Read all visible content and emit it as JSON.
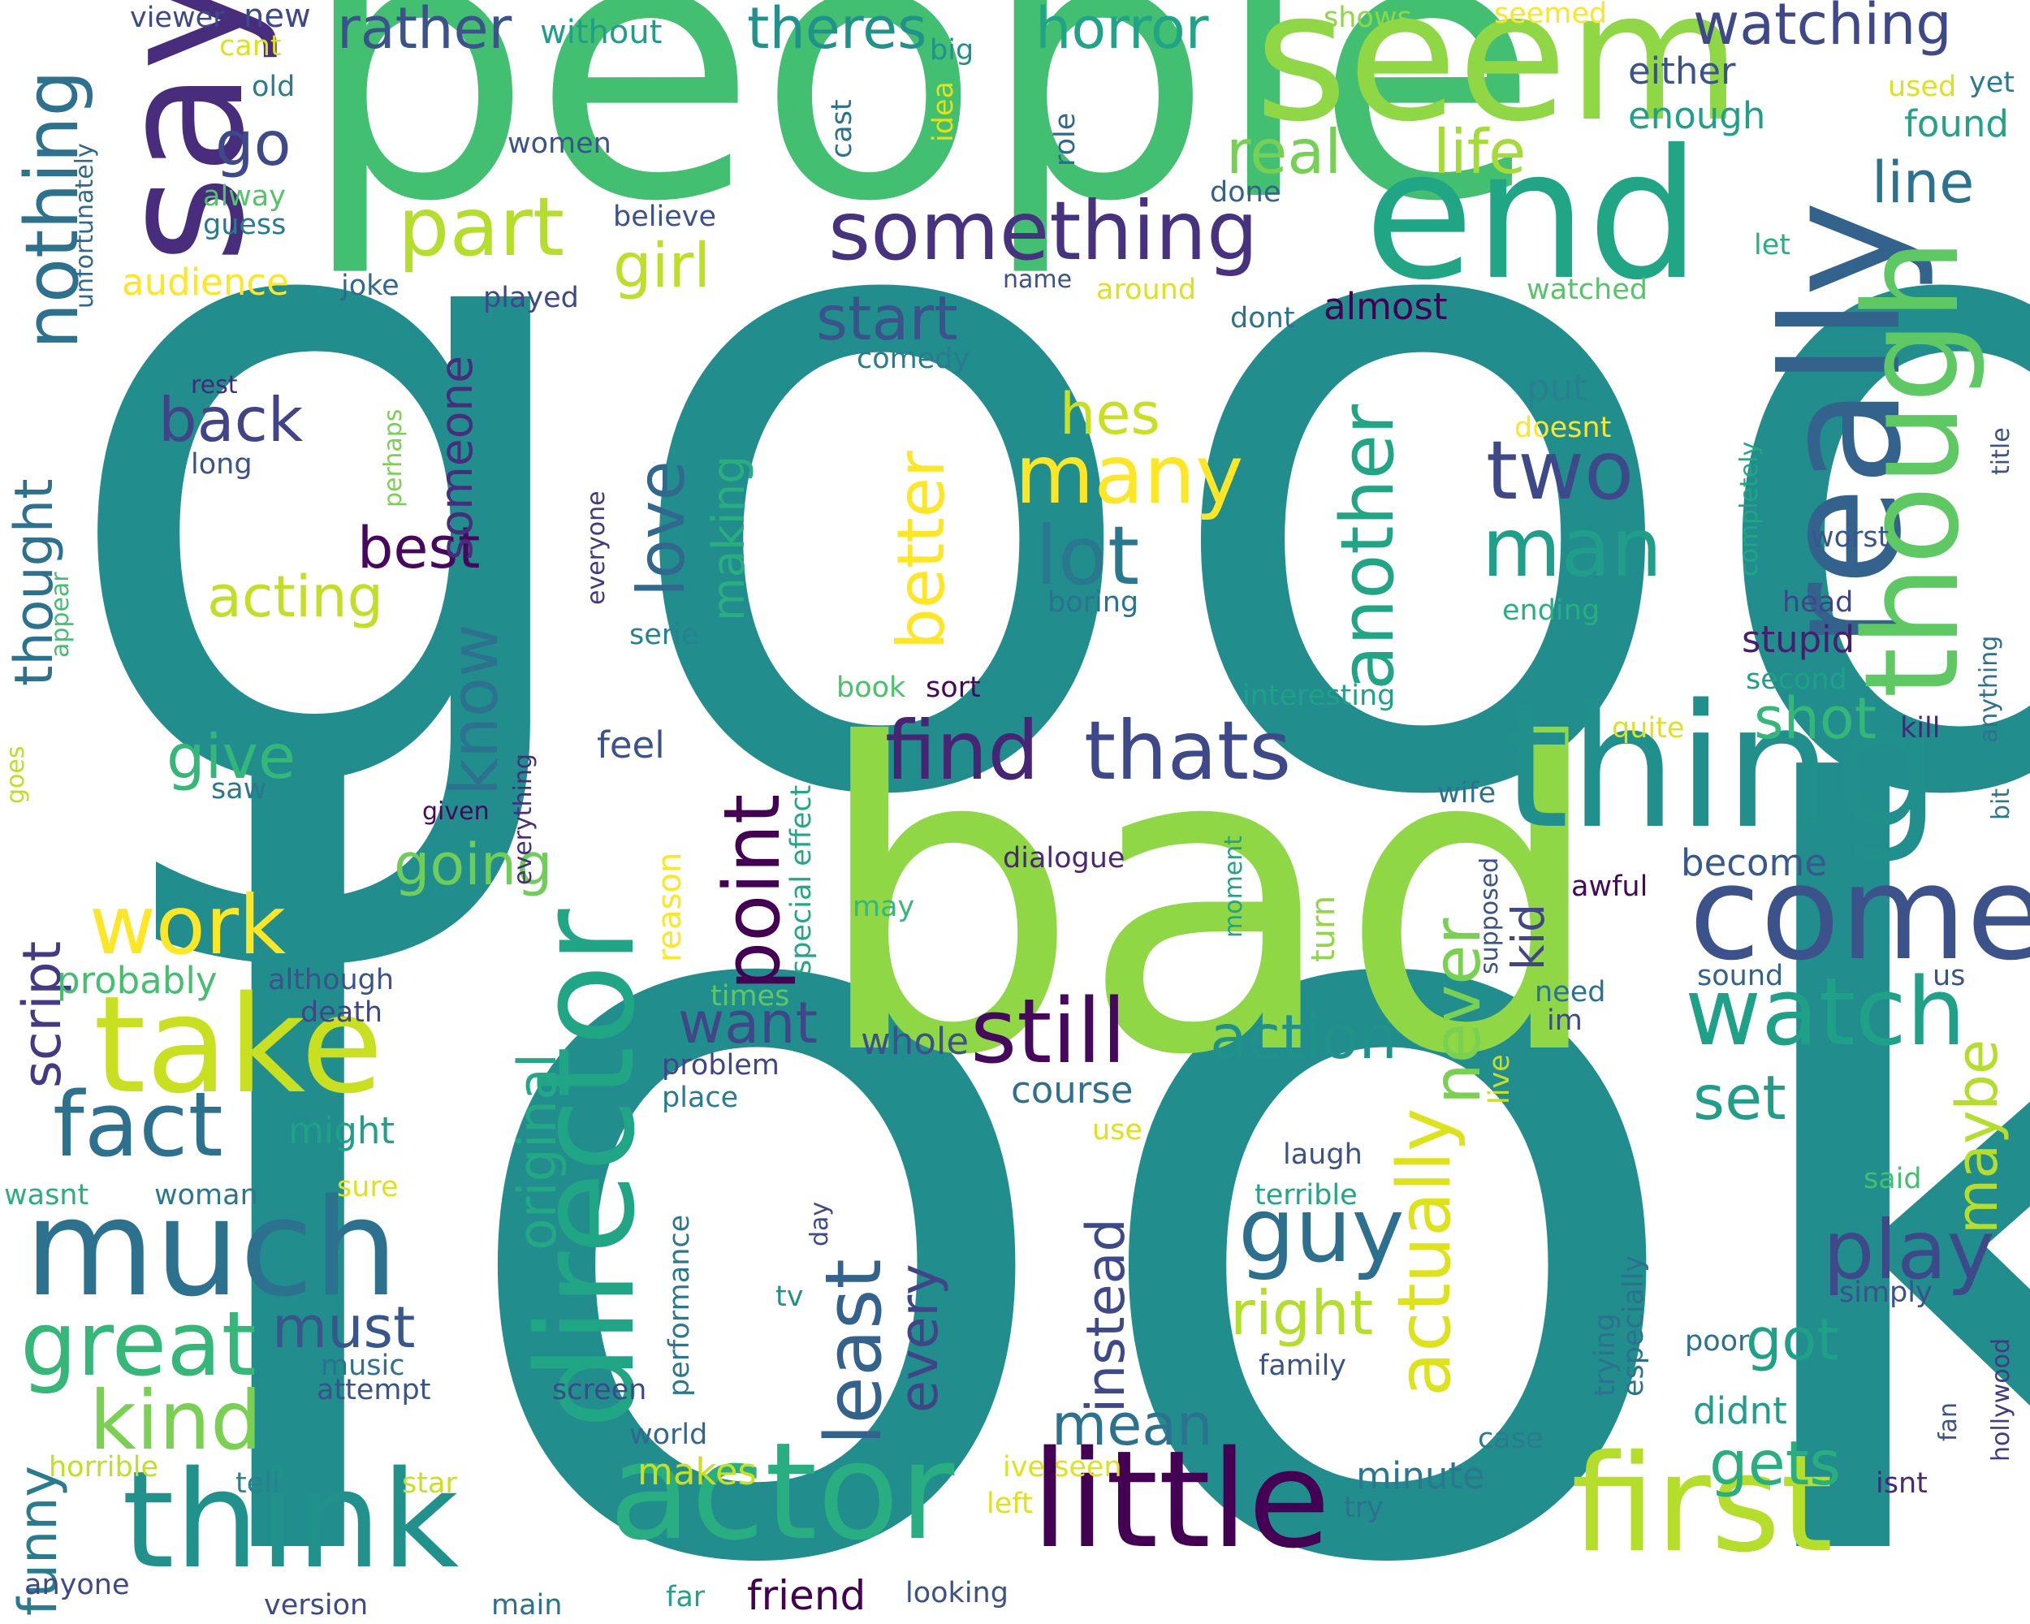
{
  "words": [
    {
      "text": "good",
      "color": "#218d8c"
    },
    {
      "text": "look",
      "color": "#218d8c"
    },
    {
      "text": "people",
      "color": "#43bf71"
    },
    {
      "text": "bad",
      "color": "#8fd744"
    },
    {
      "text": "seem",
      "color": "#8fd744"
    },
    {
      "text": "end",
      "color": "#21a685"
    },
    {
      "text": "say",
      "color": "#472d7b"
    },
    {
      "text": "really",
      "color": "#33638d"
    },
    {
      "text": "thing",
      "color": "#21908d"
    },
    {
      "text": "though",
      "color": "#5ec962"
    },
    {
      "text": "come",
      "color": "#3b528b"
    },
    {
      "text": "director",
      "color": "#21a685"
    },
    {
      "text": "take",
      "color": "#c8e020"
    },
    {
      "text": "much",
      "color": "#2c728e"
    },
    {
      "text": "think",
      "color": "#21918c"
    },
    {
      "text": "actor",
      "color": "#28ae80"
    },
    {
      "text": "little",
      "color": "#440154"
    },
    {
      "text": "first",
      "color": "#b5de2b"
    },
    {
      "text": "something",
      "color": "#46327e"
    },
    {
      "text": "part",
      "color": "#b5de2b"
    },
    {
      "text": "nothing",
      "color": "#2c728e"
    },
    {
      "text": "horror",
      "color": "#20a386"
    },
    {
      "text": "watching",
      "color": "#3e4989"
    },
    {
      "text": "rather",
      "color": "#3b528b"
    },
    {
      "text": "theres",
      "color": "#21918c"
    },
    {
      "text": "real",
      "color": "#75d054"
    },
    {
      "text": "life",
      "color": "#a5db36"
    },
    {
      "text": "line",
      "color": "#2c728e"
    },
    {
      "text": "girl",
      "color": "#bddf26"
    },
    {
      "text": "go",
      "color": "#3e4989"
    },
    {
      "text": "two",
      "color": "#3e4989"
    },
    {
      "text": "man",
      "color": "#1f9e89"
    },
    {
      "text": "many",
      "color": "#fde725"
    },
    {
      "text": "lot",
      "color": "#2a788e"
    },
    {
      "text": "love",
      "color": "#31688e"
    },
    {
      "text": "another",
      "color": "#21a685"
    },
    {
      "text": "better",
      "color": "#fde725"
    },
    {
      "text": "find",
      "color": "#482475"
    },
    {
      "text": "thats",
      "color": "#3e4989"
    },
    {
      "text": "point",
      "color": "#440154"
    },
    {
      "text": "still",
      "color": "#46085c"
    },
    {
      "text": "watch",
      "color": "#1fa187"
    },
    {
      "text": "work",
      "color": "#fde725"
    },
    {
      "text": "fact",
      "color": "#2c728e"
    },
    {
      "text": "great",
      "color": "#35b779"
    },
    {
      "text": "kind",
      "color": "#7ad151"
    },
    {
      "text": "play",
      "color": "#3e4989"
    },
    {
      "text": "guy",
      "color": "#2d708e"
    },
    {
      "text": "least",
      "color": "#33638d"
    },
    {
      "text": "actually",
      "color": "#dde318"
    },
    {
      "text": "never",
      "color": "#7ad151"
    },
    {
      "text": "action",
      "color": "#21918c"
    },
    {
      "text": "start",
      "color": "#3b528b"
    },
    {
      "text": "back",
      "color": "#414487"
    },
    {
      "text": "give",
      "color": "#35b779"
    },
    {
      "text": "know",
      "color": "#2c728e"
    },
    {
      "text": "going",
      "color": "#6ece58"
    },
    {
      "text": "acting",
      "color": "#c2df23"
    },
    {
      "text": "best",
      "color": "#46085c"
    },
    {
      "text": "hes",
      "color": "#c8e020"
    },
    {
      "text": "shot",
      "color": "#35b779"
    },
    {
      "text": "stupid",
      "color": "#481f70"
    },
    {
      "text": "gets",
      "color": "#29af7f"
    },
    {
      "text": "set",
      "color": "#1f9e89"
    },
    {
      "text": "must",
      "color": "#39568c"
    },
    {
      "text": "mean",
      "color": "#2c728e"
    },
    {
      "text": "right",
      "color": "#b5de2b"
    },
    {
      "text": "want",
      "color": "#404688"
    },
    {
      "text": "got",
      "color": "#1fa187"
    },
    {
      "text": "maybe",
      "color": "#b5de2b"
    },
    {
      "text": "funny",
      "color": "#287c8e"
    },
    {
      "text": "script",
      "color": "#443983"
    },
    {
      "text": "original",
      "color": "#22a884"
    },
    {
      "text": "instead",
      "color": "#3e4989"
    },
    {
      "text": "every",
      "color": "#414487"
    },
    {
      "text": "thought",
      "color": "#2c728e"
    },
    {
      "text": "someone",
      "color": "#472d7b"
    },
    {
      "text": "making",
      "color": "#29af7f"
    },
    {
      "text": "kid",
      "color": "#404688"
    },
    {
      "text": "friend",
      "color": "#440154"
    },
    {
      "text": "minute",
      "color": "#2a788e"
    },
    {
      "text": "makes",
      "color": "#c8e020"
    },
    {
      "text": "probably",
      "color": "#44bf70"
    },
    {
      "text": "might",
      "color": "#1fa187"
    },
    {
      "text": "course",
      "color": "#2c728e"
    },
    {
      "text": "whole",
      "color": "#3b528b"
    },
    {
      "text": "enough",
      "color": "#1fa187"
    },
    {
      "text": "either",
      "color": "#3b528b"
    },
    {
      "text": "found",
      "color": "#20a386"
    },
    {
      "text": "audience",
      "color": "#fde725"
    },
    {
      "text": "feel",
      "color": "#3b528b"
    },
    {
      "text": "reason",
      "color": "#fde725"
    },
    {
      "text": "become",
      "color": "#38598c"
    },
    {
      "text": "almost",
      "color": "#440154"
    },
    {
      "text": "put",
      "color": "#26828e"
    },
    {
      "text": "without",
      "color": "#1f9e89"
    },
    {
      "text": "new",
      "color": "#3e4989"
    },
    {
      "text": "viewer",
      "color": "#3e4989"
    },
    {
      "text": "cant",
      "color": "#dde318"
    },
    {
      "text": "old",
      "color": "#287c8e"
    },
    {
      "text": "alway",
      "color": "#52c569"
    },
    {
      "text": "guess",
      "color": "#287c8e"
    },
    {
      "text": "unfortunately",
      "color": "#31688e"
    },
    {
      "text": "women",
      "color": "#3b528b"
    },
    {
      "text": "big",
      "color": "#20928c"
    },
    {
      "text": "idea",
      "color": "#dde318"
    },
    {
      "text": "cast",
      "color": "#2c728e"
    },
    {
      "text": "believe",
      "color": "#3b528b"
    },
    {
      "text": "role",
      "color": "#31688e"
    },
    {
      "text": "done",
      "color": "#33638d"
    },
    {
      "text": "shows",
      "color": "#8fd744"
    },
    {
      "text": "seemed",
      "color": "#fde725"
    },
    {
      "text": "used",
      "color": "#dde318"
    },
    {
      "text": "yet",
      "color": "#287c8e"
    },
    {
      "text": "let",
      "color": "#29af7f"
    },
    {
      "text": "watched",
      "color": "#54c568"
    },
    {
      "text": "joke",
      "color": "#31688e"
    },
    {
      "text": "played",
      "color": "#3e4989"
    },
    {
      "text": "name",
      "color": "#3b528b"
    },
    {
      "text": "around",
      "color": "#dde318"
    },
    {
      "text": "dont",
      "color": "#2c728e"
    },
    {
      "text": "comedy",
      "color": "#287c8e"
    },
    {
      "text": "rest",
      "color": "#482878"
    },
    {
      "text": "long",
      "color": "#3b528b"
    },
    {
      "text": "perhaps",
      "color": "#7ad151"
    },
    {
      "text": "doesnt",
      "color": "#fde725"
    },
    {
      "text": "everyone",
      "color": "#453781"
    },
    {
      "text": "serie",
      "color": "#26828e"
    },
    {
      "text": "boring",
      "color": "#2c728e"
    },
    {
      "text": "completely",
      "color": "#21a685"
    },
    {
      "text": "worst",
      "color": "#39568c"
    },
    {
      "text": "title",
      "color": "#3b528b"
    },
    {
      "text": "head",
      "color": "#414487"
    },
    {
      "text": "ending",
      "color": "#29af7f"
    },
    {
      "text": "anything",
      "color": "#2c728e"
    },
    {
      "text": "second",
      "color": "#1fa187"
    },
    {
      "text": "appear",
      "color": "#44bf70"
    },
    {
      "text": "interesting",
      "color": "#1fa187"
    },
    {
      "text": "book",
      "color": "#4ac16d"
    },
    {
      "text": "sort",
      "color": "#46085c"
    },
    {
      "text": "special effect",
      "color": "#22a884"
    },
    {
      "text": "quite",
      "color": "#dde318"
    },
    {
      "text": "kill",
      "color": "#482878"
    },
    {
      "text": "bit",
      "color": "#2a788e"
    },
    {
      "text": "saw",
      "color": "#2a788e"
    },
    {
      "text": "goes",
      "color": "#bddf26"
    },
    {
      "text": "given",
      "color": "#46085c"
    },
    {
      "text": "everything",
      "color": "#472d7b"
    },
    {
      "text": "wife",
      "color": "#2c728e"
    },
    {
      "text": "dialogue",
      "color": "#482878"
    },
    {
      "text": "moment",
      "color": "#20a386"
    },
    {
      "text": "supposed",
      "color": "#3b528b"
    },
    {
      "text": "awful",
      "color": "#46085c"
    },
    {
      "text": "may",
      "color": "#35b779"
    },
    {
      "text": "turn",
      "color": "#8fd744"
    },
    {
      "text": "sound",
      "color": "#33638d"
    },
    {
      "text": "us",
      "color": "#3b528b"
    },
    {
      "text": "although",
      "color": "#3b528b"
    },
    {
      "text": "death",
      "color": "#404688"
    },
    {
      "text": "times",
      "color": "#5ec962"
    },
    {
      "text": "problem",
      "color": "#414487"
    },
    {
      "text": "place",
      "color": "#287c8e"
    },
    {
      "text": "need",
      "color": "#2c728e"
    },
    {
      "text": "im",
      "color": "#3e4989"
    },
    {
      "text": "live",
      "color": "#c8e020"
    },
    {
      "text": "use",
      "color": "#dde318"
    },
    {
      "text": "laugh",
      "color": "#3b528b"
    },
    {
      "text": "terrible",
      "color": "#21a685"
    },
    {
      "text": "said",
      "color": "#44bf70"
    },
    {
      "text": "wasnt",
      "color": "#29af7f"
    },
    {
      "text": "woman",
      "color": "#2a788e"
    },
    {
      "text": "sure",
      "color": "#dde318"
    },
    {
      "text": "performance",
      "color": "#2a788e"
    },
    {
      "text": "day",
      "color": "#3e4989"
    },
    {
      "text": "tv",
      "color": "#21918c"
    },
    {
      "text": "trying",
      "color": "#2c728e"
    },
    {
      "text": "especially",
      "color": "#2c728e"
    },
    {
      "text": "simply",
      "color": "#3b528b"
    },
    {
      "text": "poor",
      "color": "#2c728e"
    },
    {
      "text": "family",
      "color": "#3b528b"
    },
    {
      "text": "music",
      "color": "#2c728e"
    },
    {
      "text": "attempt",
      "color": "#3b528b"
    },
    {
      "text": "screen",
      "color": "#3e4989"
    },
    {
      "text": "world",
      "color": "#31688e"
    },
    {
      "text": "case",
      "color": "#287c8e"
    },
    {
      "text": "didnt",
      "color": "#1f9e89"
    },
    {
      "text": "fan",
      "color": "#3b528b"
    },
    {
      "text": "isnt",
      "color": "#482878"
    },
    {
      "text": "hollywood",
      "color": "#443983"
    },
    {
      "text": "horrible",
      "color": "#c2df23"
    },
    {
      "text": "tell",
      "color": "#26828e"
    },
    {
      "text": "star",
      "color": "#c8e020"
    },
    {
      "text": "ive seen",
      "color": "#dde318"
    },
    {
      "text": "left",
      "color": "#dde318"
    },
    {
      "text": "try",
      "color": "#2c728e"
    },
    {
      "text": "anyone",
      "color": "#3e4989"
    },
    {
      "text": "version",
      "color": "#3e4989"
    },
    {
      "text": "main",
      "color": "#2c728e"
    },
    {
      "text": "far",
      "color": "#20a386"
    },
    {
      "text": "looking",
      "color": "#3b528b"
    }
  ]
}
